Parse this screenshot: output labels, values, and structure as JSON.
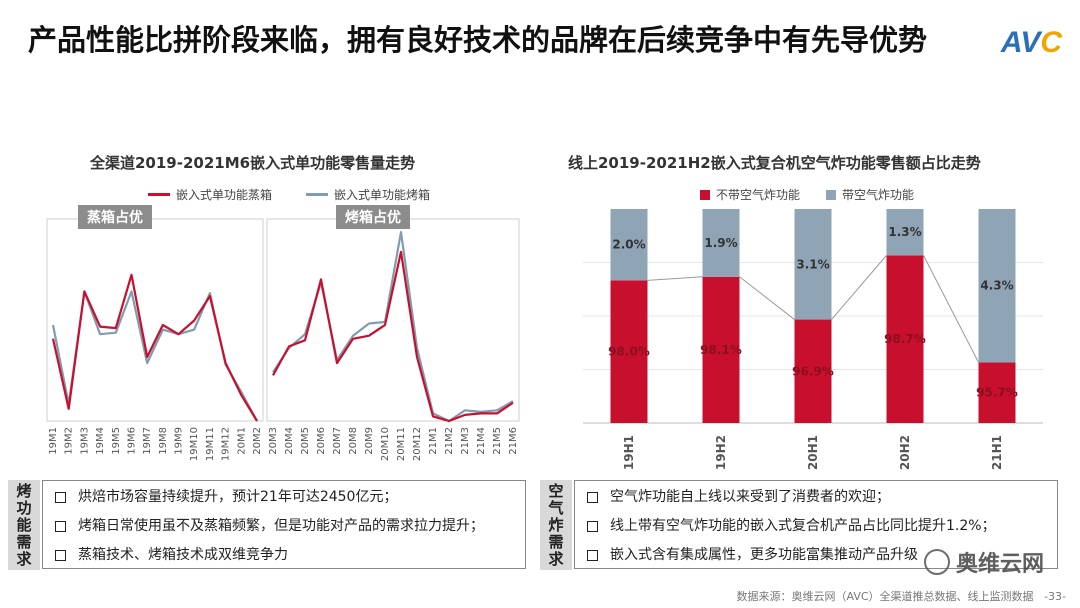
{
  "header": {
    "title": "产品性能比拼阶段来临，拥有良好技术的品牌在后续竞争中有先导优势",
    "logo_text": "AVC"
  },
  "left": {
    "title": "全渠道2019-2021M6嵌入式单功能零售量走势",
    "periods": [
      {
        "label": "蒸箱占优"
      },
      {
        "label": "烤箱占优"
      }
    ],
    "side_label": "烤功能需求",
    "notes": [
      "烘焙市场容量持续提升，预计21年可达2450亿元；",
      "烤箱日常使用虽不及蒸箱频繁，但是功能对产品的需求拉力提升；",
      "蒸箱技术、烤箱技术成双维竞争力"
    ]
  },
  "right": {
    "title": "线上2019-2021H2嵌入式复合机空气炸功能零售额占比走势",
    "side_label": "空气炸需求",
    "notes": [
      "空气炸功能自上线以来受到了消费者的欢迎；",
      "线上带有空气炸功能的嵌入式复合机产品占比同比提升1.2%；",
      "嵌入式含有集成属性，更多功能富集推动产品升级"
    ]
  },
  "footer": {
    "source": "数据来源：奥维云网（AVC）全渠道推总数据、线上监测数据",
    "page": "-33-",
    "watermark": "奥维云网"
  },
  "chart_data": [
    {
      "type": "line",
      "title": "全渠道2019-2021M6嵌入式单功能零售量走势",
      "colors": {
        "嵌入式单功能蒸箱": "#c8102e",
        "嵌入式单功能烤箱": "#7f9db0"
      },
      "segments": [
        {
          "categories": [
            "19M1",
            "19M2",
            "19M3",
            "19M4",
            "19M5",
            "19M6",
            "19M7",
            "19M8",
            "19M9",
            "19M10",
            "19M11",
            "19M12",
            "20M1",
            "20M2"
          ],
          "series": [
            {
              "name": "嵌入式单功能蒸箱",
              "values": [
                54,
                8,
                85,
                62,
                61,
                96,
                42,
                63,
                57,
                66,
                82,
                38,
                17,
                0
              ]
            },
            {
              "name": "嵌入式单功能烤箱",
              "values": [
                63,
                11,
                85,
                57,
                58,
                85,
                38,
                60,
                57,
                60,
                84,
                37,
                19,
                0
              ]
            }
          ]
        },
        {
          "categories": [
            "20M3",
            "20M4",
            "20M5",
            "20M6",
            "20M7",
            "20M8",
            "20M9",
            "20M10",
            "20M11",
            "20M12",
            "21M1",
            "21M2",
            "21M3",
            "21M4",
            "21M5",
            "21M6"
          ],
          "series": [
            {
              "name": "嵌入式单功能蒸箱",
              "values": [
                30,
                49,
                53,
                93,
                38,
                54,
                56,
                63,
                111,
                42,
                3,
                0,
                4,
                5,
                5,
                12
              ]
            },
            {
              "name": "嵌入式单功能烤箱",
              "values": [
                32,
                48,
                57,
                91,
                40,
                56,
                64,
                65,
                124,
                48,
                5,
                0,
                7,
                6,
                7,
                13
              ]
            }
          ]
        }
      ]
    },
    {
      "type": "bar",
      "title": "线上2019-2021H2嵌入式复合机空气炸功能零售额占比走势",
      "categories": [
        "19H1",
        "19H2",
        "20H1",
        "20H2",
        "21H1"
      ],
      "colors": {
        "不带空气炸功能": "#c8102e",
        "带空气炸功能": "#8fa5b5"
      },
      "series": [
        {
          "name": "不带空气炸功能",
          "values": [
            98.0,
            98.1,
            96.9,
            98.7,
            95.7
          ],
          "labels": [
            "98.0%",
            "98.1%",
            "96.9%",
            "98.7%",
            "95.7%"
          ]
        },
        {
          "name": "带空气炸功能",
          "values": [
            2.0,
            1.9,
            3.1,
            1.3,
            4.3
          ],
          "labels": [
            "2.0%",
            "1.9%",
            "3.1%",
            "1.3%",
            "4.3%"
          ]
        }
      ]
    }
  ]
}
